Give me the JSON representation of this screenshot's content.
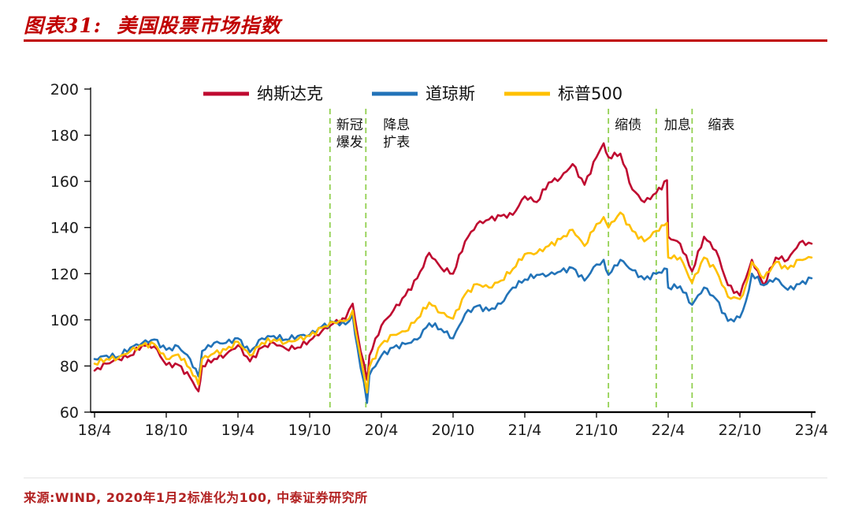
{
  "title": {
    "label": "图表31:  美国股票市场指数"
  },
  "source": {
    "label": "来源:WIND, 2020年1月2标准化为100, 中泰证券研究所"
  },
  "colors": {
    "title_red": "#C00000",
    "underline_red": "#C00000",
    "source_red": "#B22222",
    "nasdaq_red": "#BF0A30",
    "dow_blue": "#2273B8",
    "sp500_gold": "#FFC000",
    "event_green": "#92D050",
    "axis_black": "#000000"
  },
  "chart_data": {
    "type": "line",
    "title": "美国股票市场指数",
    "normalization_note": "2020年1月2标准化为100",
    "grid": false,
    "legend_position": "top",
    "xlim": [
      0,
      60
    ],
    "ylim": [
      60,
      200
    ],
    "y_ticks": [
      60,
      80,
      100,
      120,
      140,
      160,
      180,
      200
    ],
    "x_ticks": [
      0,
      6,
      12,
      18,
      24,
      30,
      36,
      42,
      48,
      54,
      60
    ],
    "x_tick_labels": [
      "18/4",
      "18/10",
      "19/4",
      "19/10",
      "20/4",
      "20/10",
      "21/4",
      "21/10",
      "22/4",
      "22/10",
      "23/4"
    ],
    "x_unit": "months since 2018/4",
    "x": [
      0,
      1,
      2,
      3,
      4,
      5,
      6,
      7,
      8,
      8.7,
      9,
      10,
      11,
      12,
      13,
      14,
      15,
      16,
      17,
      18,
      19,
      20,
      21,
      21.6,
      22,
      22.8,
      23,
      24,
      25,
      26,
      27,
      28,
      29,
      30,
      31,
      32,
      33,
      34,
      35,
      36,
      37,
      38,
      39,
      40,
      41,
      42,
      42.6,
      43,
      44,
      45,
      46,
      47,
      47.9,
      48,
      49,
      50,
      51,
      52,
      53,
      54,
      54.5,
      55,
      56,
      57,
      58,
      59,
      60
    ],
    "series": [
      {
        "key": "nasdaq",
        "name": "纳斯达克",
        "color": "#BF0A30",
        "values": [
          78,
          81,
          83,
          84.5,
          89,
          88.5,
          80.5,
          80.5,
          75,
          69,
          80,
          83,
          85,
          89,
          82,
          88,
          90,
          87.5,
          88,
          91,
          95,
          98.5,
          100.5,
          107,
          94,
          74,
          84.5,
          97.5,
          104,
          110.5,
          118,
          129,
          122.5,
          120,
          134,
          141.5,
          143.5,
          145,
          145.5,
          153.5,
          151,
          159.5,
          161.5,
          167.5,
          158.5,
          170.5,
          176.5,
          170.5,
          172,
          156.5,
          151,
          155,
          160.5,
          136,
          133,
          121,
          136,
          130,
          115,
          110.5,
          118,
          126,
          115,
          127,
          126,
          133.5,
          133
        ]
      },
      {
        "key": "dow",
        "name": "道琼斯",
        "color": "#2273B8",
        "values": [
          83,
          84.5,
          84,
          88,
          90,
          91.5,
          87,
          88.5,
          83,
          75.5,
          86.5,
          90,
          90,
          92,
          86,
          92,
          93,
          91.5,
          93,
          93.5,
          97,
          99,
          98,
          102,
          88,
          64,
          76,
          84.5,
          88,
          89.5,
          91.5,
          98.5,
          96,
          92,
          102.5,
          106,
          104,
          107,
          114,
          117.5,
          119.5,
          119.5,
          121,
          122.5,
          117,
          124,
          126,
          119.5,
          126,
          121.5,
          117.5,
          120,
          122,
          114,
          114.5,
          106.5,
          114,
          109,
          99.5,
          101,
          108,
          120,
          115,
          118,
          113,
          115.5,
          118
        ]
      },
      {
        "key": "sp500",
        "name": "标普500",
        "color": "#FFC000",
        "values": [
          81,
          83,
          83.5,
          86.5,
          89,
          89.5,
          83,
          85,
          79,
          72,
          83,
          85.5,
          87,
          90.5,
          84.5,
          90,
          91.5,
          90,
          91.5,
          93,
          96.5,
          99,
          99.5,
          104,
          91,
          68.5,
          79.5,
          89.5,
          93.5,
          95,
          100.5,
          107.5,
          103,
          100.5,
          111,
          115.5,
          114,
          117,
          122,
          128.5,
          129,
          132,
          135,
          139,
          132,
          141.5,
          144.5,
          140,
          146.5,
          138.5,
          134,
          138.5,
          142,
          127,
          127,
          116,
          127,
          121.5,
          110,
          109,
          115,
          125,
          118,
          125,
          122,
          126,
          127
        ]
      }
    ],
    "events": [
      {
        "x": 19.7,
        "label": "新冠爆发",
        "lines": [
          "新冠",
          "爆发"
        ],
        "dx": 8
      },
      {
        "x": 22.7,
        "label": "降息扩表",
        "lines": [
          "降息",
          "扩表"
        ],
        "dx": 22
      },
      {
        "x": 43,
        "label": "缩债",
        "lines": [
          "缩债"
        ],
        "dx": 8
      },
      {
        "x": 47,
        "label": "加息",
        "lines": [
          "加息"
        ],
        "dx": 10
      },
      {
        "x": 50,
        "label": "缩表",
        "lines": [
          "缩表"
        ],
        "dx": 20
      }
    ]
  }
}
